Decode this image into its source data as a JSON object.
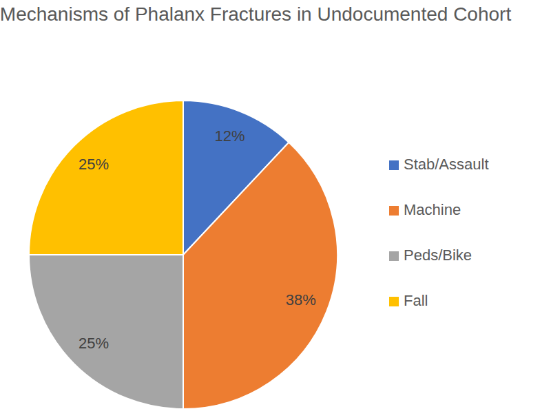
{
  "chart_data": {
    "type": "pie",
    "title": "Mechanisms of Phalanx Fractures in Undocumented Cohort",
    "categories": [
      "Stab/Assault",
      "Machine",
      "Peds/Bike",
      "Fall"
    ],
    "values": [
      12,
      38,
      25,
      25
    ],
    "value_labels": [
      "12%",
      "38%",
      "25%",
      "25%"
    ],
    "colors": [
      "#4472c4",
      "#ed7d31",
      "#a5a5a5",
      "#ffc000"
    ],
    "data_labels": true,
    "legend": "right"
  }
}
